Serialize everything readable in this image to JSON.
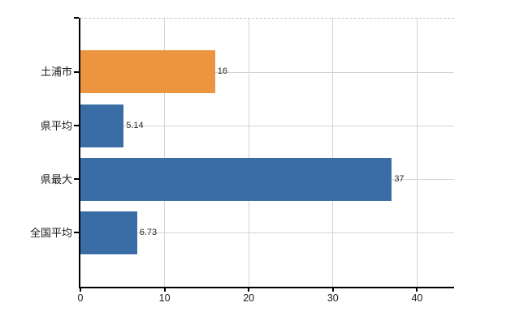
{
  "chart_data": {
    "type": "bar",
    "orientation": "horizontal",
    "title": "",
    "xlabel": "",
    "ylabel": "",
    "categories": [
      "土浦市",
      "県平均",
      "県最大",
      "全国平均"
    ],
    "values": [
      16,
      5.14,
      37,
      6.73
    ],
    "value_labels": [
      "16",
      "5.14",
      "37",
      "6.73"
    ],
    "bar_colors": [
      "#ED9440",
      "#3A6CA6",
      "#3A6CA6",
      "#3A6CA6"
    ],
    "highlight_category": "土浦市",
    "x_ticks": [
      0,
      10,
      20,
      30,
      40
    ],
    "x_tick_labels": [
      "0",
      "10",
      "20",
      "30",
      "40"
    ],
    "xlim": [
      0,
      44.4
    ],
    "grid": "vertical-gridlines + horizontal row center lines",
    "legend_position": "none"
  },
  "colors": {
    "background": "#FFFFFF",
    "accent_orange": "#ED9440",
    "accent_blue": "#3A6CA6",
    "gridline": "#D4D4D4",
    "top_border_dashed": "#C8C8C8",
    "axis": "#000000",
    "text": "#1A1A1A"
  }
}
